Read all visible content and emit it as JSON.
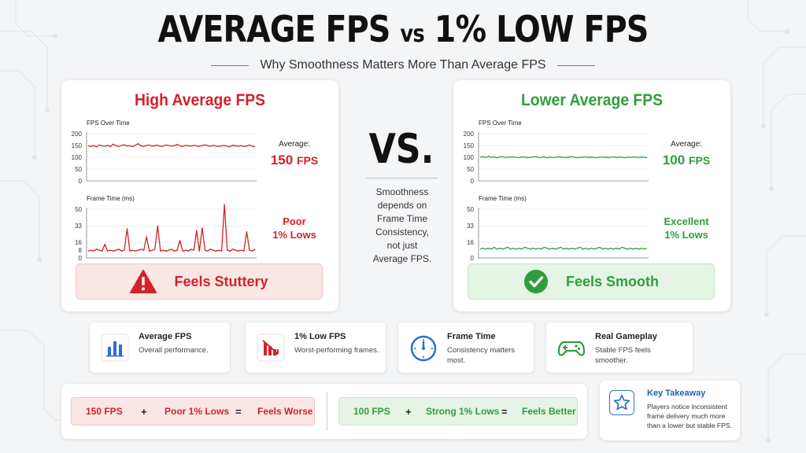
{
  "header": {
    "title_main": "AVERAGE FPS",
    "title_vs": "vs",
    "title_end": "1% LOW FPS",
    "subtitle": "Why Smoothness Matters More Than Average FPS"
  },
  "left_panel": {
    "title": "High Average FPS",
    "fps_chart_label": "FPS Over Time",
    "fps_ticks": [
      "200",
      "150",
      "100",
      "50",
      "0"
    ],
    "frametime_chart_label": "Frame Time (ms)",
    "frametime_ticks": [
      "50",
      "33",
      "16",
      "8",
      "0"
    ],
    "average_label": "Average:",
    "average_value": "150",
    "average_unit": "FPS",
    "lows_line1": "Poor",
    "lows_line2": "1% Lows",
    "verdict": "Feels Stuttery",
    "color": "#d2232a"
  },
  "right_panel": {
    "title": "Lower Average FPS",
    "fps_chart_label": "FPS Over Time",
    "fps_ticks": [
      "200",
      "150",
      "100",
      "50",
      "0"
    ],
    "frametime_chart_label": "Frame Time (ms)",
    "frametime_ticks": [
      "50",
      "33",
      "16",
      "0"
    ],
    "average_label": "Average:",
    "average_value": "100",
    "average_unit": "FPS",
    "lows_line1": "Excellent",
    "lows_line2": "1% Lows",
    "verdict": "Feels Smooth",
    "color": "#2e9e3e"
  },
  "center": {
    "vs": "VS.",
    "line1": "Smoothness",
    "line2": "depends on",
    "line3": "Frame Time",
    "line4": "Consistency,",
    "line5": "not just",
    "line6": "Average FPS."
  },
  "cards": [
    {
      "title": "Average FPS",
      "desc": "Overall performance.",
      "icon": "bar-chart-icon",
      "color": "#2c6fd1"
    },
    {
      "title": "1% Low FPS",
      "desc": "Worst-performing frames.",
      "icon": "declining-chart-icon",
      "color": "#d2232a"
    },
    {
      "title": "Frame Time",
      "desc": "Consistency matters most.",
      "icon": "stopwatch-icon",
      "color": "#2c6fd1"
    },
    {
      "title": "Real Gameplay",
      "desc": "Stable FPS feels smoother.",
      "icon": "gamepad-icon",
      "color": "#2e9e3e"
    }
  ],
  "equation_bad": {
    "a": "150 FPS",
    "plus": "+",
    "b": "Poor 1% Lows",
    "eq": "=",
    "result": "Feels Worse"
  },
  "equation_good": {
    "a": "100 FPS",
    "plus": "+",
    "b": "Strong 1% Lows",
    "eq": "=",
    "result": "Feels Better"
  },
  "takeaway": {
    "title": "Key Takeaway",
    "desc": "Players notice inconsistent frame delivery much more than a lower but stable FPS.",
    "icon": "star-icon"
  },
  "chart_data": [
    {
      "type": "line",
      "title": "FPS Over Time",
      "series": [
        {
          "values": [
            148,
            146,
            150,
            144,
            152,
            149,
            147,
            151,
            145,
            156,
            149,
            146,
            150,
            153,
            147,
            149,
            145,
            151,
            158,
            148,
            146,
            150,
            152,
            147,
            149,
            151,
            146,
            148,
            152,
            150,
            147,
            149,
            155,
            148,
            146,
            150,
            149,
            147,
            151,
            148,
            146,
            150,
            153,
            149,
            147,
            151,
            148,
            146,
            149,
            150,
            147,
            145,
            151,
            149,
            147,
            150,
            146,
            148,
            152,
            147,
            144
          ]
        }
      ],
      "ylim": [
        0,
        200
      ],
      "yticks": [
        0,
        50,
        100,
        150,
        200
      ]
    },
    {
      "type": "line",
      "title": "Frame Time (ms)",
      "series": [
        {
          "values": [
            7,
            8,
            7,
            9,
            8,
            7,
            14,
            7,
            8,
            7,
            8,
            9,
            7,
            8,
            30,
            7,
            8,
            7,
            8,
            9,
            8,
            22,
            7,
            8,
            9,
            33,
            7,
            8,
            7,
            8,
            9,
            7,
            8,
            18,
            7,
            8,
            7,
            9,
            8,
            28,
            7,
            31,
            8,
            7,
            9,
            8,
            7,
            8,
            7,
            55,
            8,
            7,
            9,
            8,
            7,
            8,
            7,
            27,
            8,
            7,
            9
          ]
        }
      ],
      "ylim": [
        0,
        50
      ],
      "yticks": [
        0,
        8,
        16,
        33,
        50
      ]
    },
    {
      "type": "line",
      "title": "FPS Over Time",
      "series": [
        {
          "values": [
            101,
            103,
            99,
            104,
            100,
            102,
            98,
            101,
            103,
            100,
            99,
            102,
            101,
            100,
            98,
            102,
            101,
            99,
            100,
            101,
            103,
            99,
            100,
            102,
            98,
            101,
            100,
            99,
            102,
            101,
            100,
            99,
            101,
            103,
            100,
            98,
            101,
            100,
            102,
            99,
            101,
            100,
            98,
            102,
            100,
            101,
            99,
            100,
            102,
            99,
            101,
            100,
            98,
            101,
            100,
            102,
            99,
            100,
            101,
            100,
            99
          ]
        }
      ],
      "ylim": [
        0,
        200
      ],
      "yticks": [
        0,
        50,
        100,
        150,
        200
      ]
    },
    {
      "type": "line",
      "title": "Frame Time (ms)",
      "series": [
        {
          "values": [
            9,
            10,
            9,
            10,
            9,
            11,
            9,
            10,
            9,
            10,
            11,
            9,
            10,
            9,
            10,
            9,
            11,
            10,
            9,
            10,
            9,
            10,
            9,
            11,
            10,
            9,
            10,
            9,
            10,
            11,
            9,
            10,
            9,
            10,
            9,
            10,
            11,
            9,
            10,
            9,
            10,
            9,
            10,
            11,
            9,
            10,
            9,
            10,
            9,
            10,
            9,
            11,
            10,
            9,
            10,
            9,
            10,
            9,
            10,
            9,
            10
          ]
        }
      ],
      "ylim": [
        0,
        50
      ],
      "yticks": [
        0,
        16,
        33,
        50
      ]
    }
  ]
}
